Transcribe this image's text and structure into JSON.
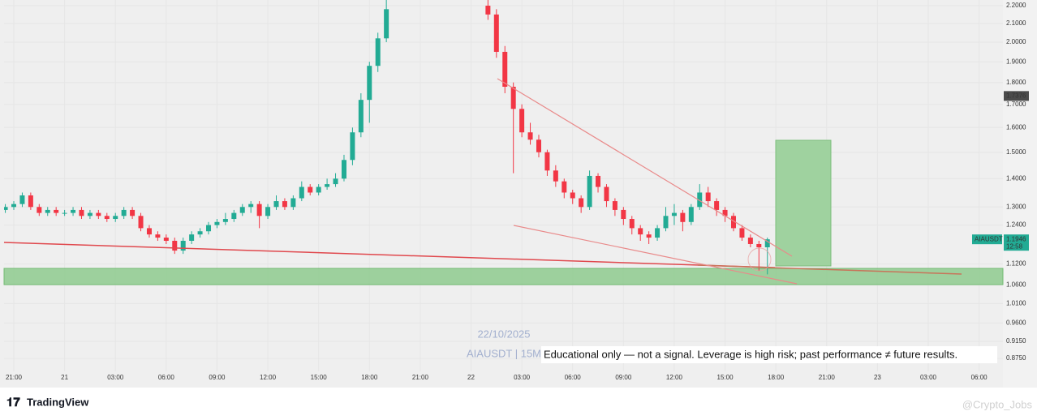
{
  "chart_data": {
    "type": "candlestick",
    "symbol": "AIAUSDT",
    "date_label": "22/10/2025",
    "symbol_interval": "AIAUSDT | 15M",
    "disclaimer": "Educational only — not a signal. Leverage is high risk; past performance ≠ future results.",
    "brand": "TradingView",
    "watermark": "@Crypto_Jobs",
    "countdown": "12:58",
    "marker_price": 1.7376,
    "last_price": 1.1946,
    "log_scale": true,
    "grid": true,
    "up_color": "#22ab94",
    "down_color": "#f23645",
    "xlim": [
      -0.575,
      58.36
    ],
    "xticks": [
      {
        "value": 0,
        "label": "21:00"
      },
      {
        "value": 3,
        "label": "21"
      },
      {
        "value": 6,
        "label": "03:00"
      },
      {
        "value": 9,
        "label": "06:00"
      },
      {
        "value": 12,
        "label": "09:00"
      },
      {
        "value": 15,
        "label": "12:00"
      },
      {
        "value": 18,
        "label": "15:00"
      },
      {
        "value": 21,
        "label": "18:00"
      },
      {
        "value": 24,
        "label": "21:00"
      },
      {
        "value": 27,
        "label": "22"
      },
      {
        "value": 30,
        "label": "03:00"
      },
      {
        "value": 33,
        "label": "06:00"
      },
      {
        "value": 36,
        "label": "09:00"
      },
      {
        "value": 39,
        "label": "12:00"
      },
      {
        "value": 42,
        "label": "15:00"
      },
      {
        "value": 45,
        "label": "18:00"
      },
      {
        "value": 48,
        "label": "21:00"
      },
      {
        "value": 51,
        "label": "23"
      },
      {
        "value": 54,
        "label": "03:00"
      },
      {
        "value": 57,
        "label": "06:00"
      }
    ],
    "ylim": [
      0.846,
      2.233
    ],
    "yticks": [
      {
        "value": 2.2,
        "label": "2.2000"
      },
      {
        "value": 2.1,
        "label": "2.1000"
      },
      {
        "value": 2.0,
        "label": "2.0000"
      },
      {
        "value": 1.9,
        "label": "1.9000"
      },
      {
        "value": 1.8,
        "label": "1.8000"
      },
      {
        "value": 1.7,
        "label": "1.7000"
      },
      {
        "value": 1.6,
        "label": "1.6000"
      },
      {
        "value": 1.5,
        "label": "1.5000"
      },
      {
        "value": 1.4,
        "label": "1.4000"
      },
      {
        "value": 1.3,
        "label": "1.3000"
      },
      {
        "value": 1.24,
        "label": "1.2400"
      },
      {
        "value": 1.12,
        "label": "1.1200"
      },
      {
        "value": 1.06,
        "label": "1.0600"
      },
      {
        "value": 1.01,
        "label": "1.0100"
      },
      {
        "value": 0.96,
        "label": "0.9600"
      },
      {
        "value": 0.915,
        "label": "0.9150"
      },
      {
        "value": 0.875,
        "label": "0.8750"
      }
    ],
    "x": [
      -0.5,
      0,
      0.5,
      1,
      1.5,
      2,
      2.5,
      3,
      3.5,
      4,
      4.5,
      5,
      5.5,
      6,
      6.5,
      7,
      7.5,
      8,
      8.5,
      9,
      9.5,
      10,
      10.5,
      11,
      11.5,
      12,
      12.5,
      13,
      13.5,
      14,
      14.5,
      15,
      15.5,
      16,
      16.5,
      17,
      17.5,
      18,
      18.5,
      19,
      19.5,
      20,
      20.5,
      21,
      21.5,
      22,
      28,
      28.5,
      29,
      29.5,
      30,
      30.5,
      31,
      31.5,
      32,
      32.5,
      33,
      33.5,
      34,
      34.5,
      35,
      35.5,
      36,
      36.5,
      37,
      37.5,
      38,
      38.5,
      39,
      39.5,
      40,
      40.5,
      41,
      41.5,
      42,
      42.5,
      43,
      43.5,
      44,
      44.5
    ],
    "open": [
      1.29,
      1.3,
      1.31,
      1.34,
      1.3,
      1.28,
      1.29,
      1.28,
      1.28,
      1.29,
      1.27,
      1.28,
      1.27,
      1.26,
      1.27,
      1.29,
      1.27,
      1.23,
      1.21,
      1.2,
      1.19,
      1.16,
      1.19,
      1.21,
      1.22,
      1.24,
      1.25,
      1.26,
      1.28,
      1.3,
      1.31,
      1.27,
      1.3,
      1.32,
      1.3,
      1.33,
      1.37,
      1.35,
      1.37,
      1.38,
      1.4,
      1.47,
      1.58,
      1.72,
      1.88,
      2.02,
      2.2,
      2.15,
      1.95,
      1.78,
      1.68,
      1.58,
      1.55,
      1.5,
      1.43,
      1.39,
      1.35,
      1.33,
      1.3,
      1.41,
      1.37,
      1.32,
      1.29,
      1.26,
      1.23,
      1.21,
      1.2,
      1.23,
      1.27,
      1.28,
      1.25,
      1.3,
      1.35,
      1.32,
      1.29,
      1.27,
      1.23,
      1.2,
      1.18,
      1.17
    ],
    "high": [
      1.31,
      1.32,
      1.35,
      1.35,
      1.31,
      1.3,
      1.3,
      1.29,
      1.3,
      1.3,
      1.29,
      1.29,
      1.28,
      1.28,
      1.3,
      1.3,
      1.28,
      1.24,
      1.22,
      1.21,
      1.2,
      1.2,
      1.22,
      1.23,
      1.25,
      1.26,
      1.28,
      1.29,
      1.31,
      1.32,
      1.32,
      1.31,
      1.34,
      1.33,
      1.34,
      1.39,
      1.38,
      1.38,
      1.4,
      1.42,
      1.49,
      1.6,
      1.75,
      1.9,
      2.05,
      2.25,
      2.3,
      2.18,
      1.98,
      1.8,
      1.7,
      1.62,
      1.57,
      1.51,
      1.45,
      1.4,
      1.36,
      1.34,
      1.43,
      1.42,
      1.38,
      1.33,
      1.3,
      1.27,
      1.24,
      1.22,
      1.24,
      1.3,
      1.31,
      1.29,
      1.31,
      1.38,
      1.37,
      1.33,
      1.3,
      1.28,
      1.24,
      1.21,
      1.19,
      1.2
    ],
    "low": [
      1.28,
      1.29,
      1.3,
      1.29,
      1.27,
      1.27,
      1.27,
      1.27,
      1.27,
      1.26,
      1.26,
      1.26,
      1.25,
      1.25,
      1.26,
      1.26,
      1.22,
      1.2,
      1.19,
      1.18,
      1.15,
      1.15,
      1.18,
      1.2,
      1.21,
      1.23,
      1.24,
      1.25,
      1.27,
      1.28,
      1.23,
      1.26,
      1.29,
      1.29,
      1.29,
      1.32,
      1.34,
      1.34,
      1.36,
      1.37,
      1.39,
      1.45,
      1.56,
      1.62,
      1.85,
      2.0,
      2.12,
      1.92,
      1.75,
      1.42,
      1.56,
      1.53,
      1.48,
      1.41,
      1.37,
      1.33,
      1.31,
      1.28,
      1.29,
      1.35,
      1.3,
      1.27,
      1.24,
      1.21,
      1.19,
      1.18,
      1.19,
      1.22,
      1.24,
      1.22,
      1.24,
      1.29,
      1.3,
      1.27,
      1.25,
      1.22,
      1.19,
      1.17,
      1.1,
      1.09
    ],
    "close": [
      1.3,
      1.31,
      1.34,
      1.3,
      1.28,
      1.29,
      1.28,
      1.28,
      1.29,
      1.27,
      1.28,
      1.27,
      1.26,
      1.27,
      1.29,
      1.27,
      1.23,
      1.21,
      1.2,
      1.19,
      1.16,
      1.19,
      1.21,
      1.22,
      1.24,
      1.25,
      1.26,
      1.28,
      1.3,
      1.31,
      1.27,
      1.3,
      1.32,
      1.3,
      1.33,
      1.37,
      1.35,
      1.37,
      1.38,
      1.4,
      1.47,
      1.58,
      1.72,
      1.88,
      2.02,
      2.18,
      2.15,
      1.95,
      1.78,
      1.68,
      1.58,
      1.55,
      1.5,
      1.43,
      1.39,
      1.35,
      1.33,
      1.3,
      1.41,
      1.37,
      1.32,
      1.29,
      1.26,
      1.23,
      1.21,
      1.2,
      1.23,
      1.27,
      1.28,
      1.25,
      1.3,
      1.35,
      1.32,
      1.29,
      1.27,
      1.23,
      1.2,
      1.18,
      1.17,
      1.1946
    ]
  }
}
